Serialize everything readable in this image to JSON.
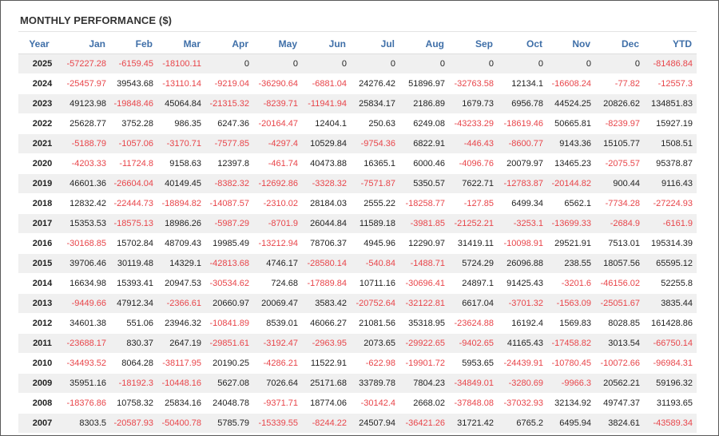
{
  "panel": {
    "title": "MONTHLY PERFORMANCE ($)"
  },
  "colors": {
    "header_text": "#3f6fa8",
    "negative_text": "#e8454a",
    "stripe_row": "#f0f0f0"
  },
  "table": {
    "headers": [
      "Year",
      "Jan",
      "Feb",
      "Mar",
      "Apr",
      "May",
      "Jun",
      "Jul",
      "Aug",
      "Sep",
      "Oct",
      "Nov",
      "Dec",
      "YTD"
    ],
    "rows": [
      [
        "2025",
        "-57227.28",
        "-6159.45",
        "-18100.11",
        "0",
        "0",
        "0",
        "0",
        "0",
        "0",
        "0",
        "0",
        "0",
        "-81486.84"
      ],
      [
        "2024",
        "-25457.97",
        "39543.68",
        "-13110.14",
        "-9219.04",
        "-36290.64",
        "-6881.04",
        "24276.42",
        "51896.97",
        "-32763.58",
        "12134.1",
        "-16608.24",
        "-77.82",
        "-12557.3"
      ],
      [
        "2023",
        "49123.98",
        "-19848.46",
        "45064.84",
        "-21315.32",
        "-8239.71",
        "-11941.94",
        "25834.17",
        "2186.89",
        "1679.73",
        "6956.78",
        "44524.25",
        "20826.62",
        "134851.83"
      ],
      [
        "2022",
        "25628.77",
        "3752.28",
        "986.35",
        "6247.36",
        "-20164.47",
        "12404.1",
        "250.63",
        "6249.08",
        "-43233.29",
        "-18619.46",
        "50665.81",
        "-8239.97",
        "15927.19"
      ],
      [
        "2021",
        "-5188.79",
        "-1057.06",
        "-3170.71",
        "-7577.85",
        "-4297.4",
        "10529.84",
        "-9754.36",
        "6822.91",
        "-446.43",
        "-8600.77",
        "9143.36",
        "15105.77",
        "1508.51"
      ],
      [
        "2020",
        "-4203.33",
        "-11724.8",
        "9158.63",
        "12397.8",
        "-461.74",
        "40473.88",
        "16365.1",
        "6000.46",
        "-4096.76",
        "20079.97",
        "13465.23",
        "-2075.57",
        "95378.87"
      ],
      [
        "2019",
        "46601.36",
        "-26604.04",
        "40149.45",
        "-8382.32",
        "-12692.86",
        "-3328.32",
        "-7571.87",
        "5350.57",
        "7622.71",
        "-12783.87",
        "-20144.82",
        "900.44",
        "9116.43"
      ],
      [
        "2018",
        "12832.42",
        "-22444.73",
        "-18894.82",
        "-14087.57",
        "-2310.02",
        "28184.03",
        "2555.22",
        "-18258.77",
        "-127.85",
        "6499.34",
        "6562.1",
        "-7734.28",
        "-27224.93"
      ],
      [
        "2017",
        "15353.53",
        "-18575.13",
        "18986.26",
        "-5987.29",
        "-8701.9",
        "26044.84",
        "11589.18",
        "-3981.85",
        "-21252.21",
        "-3253.1",
        "-13699.33",
        "-2684.9",
        "-6161.9"
      ],
      [
        "2016",
        "-30168.85",
        "15702.84",
        "48709.43",
        "19985.49",
        "-13212.94",
        "78706.37",
        "4945.96",
        "12290.97",
        "31419.11",
        "-10098.91",
        "29521.91",
        "7513.01",
        "195314.39"
      ],
      [
        "2015",
        "39706.46",
        "30119.48",
        "14329.1",
        "-42813.68",
        "4746.17",
        "-28580.14",
        "-540.84",
        "-1488.71",
        "5724.29",
        "26096.88",
        "238.55",
        "18057.56",
        "65595.12"
      ],
      [
        "2014",
        "16634.98",
        "15393.41",
        "20947.53",
        "-30534.62",
        "724.68",
        "-17889.84",
        "10711.16",
        "-30696.41",
        "24897.1",
        "91425.43",
        "-3201.6",
        "-46156.02",
        "52255.8"
      ],
      [
        "2013",
        "-9449.66",
        "47912.34",
        "-2366.61",
        "20660.97",
        "20069.47",
        "3583.42",
        "-20752.64",
        "-32122.81",
        "6617.04",
        "-3701.32",
        "-1563.09",
        "-25051.67",
        "3835.44"
      ],
      [
        "2012",
        "34601.38",
        "551.06",
        "23946.32",
        "-10841.89",
        "8539.01",
        "46066.27",
        "21081.56",
        "35318.95",
        "-23624.88",
        "16192.4",
        "1569.83",
        "8028.85",
        "161428.86"
      ],
      [
        "2011",
        "-23688.17",
        "830.37",
        "2647.19",
        "-29851.61",
        "-3192.47",
        "-2963.95",
        "2073.65",
        "-29922.65",
        "-9402.65",
        "41165.43",
        "-17458.82",
        "3013.54",
        "-66750.14"
      ],
      [
        "2010",
        "-34493.52",
        "8064.28",
        "-38117.95",
        "20190.25",
        "-4286.21",
        "11522.91",
        "-622.98",
        "-19901.72",
        "5953.65",
        "-24439.91",
        "-10780.45",
        "-10072.66",
        "-96984.31"
      ],
      [
        "2009",
        "35951.16",
        "-18192.3",
        "-10448.16",
        "5627.08",
        "7026.64",
        "25171.68",
        "33789.78",
        "7804.23",
        "-34849.01",
        "-3280.69",
        "-9966.3",
        "20562.21",
        "59196.32"
      ],
      [
        "2008",
        "-18376.86",
        "10758.32",
        "25834.16",
        "24048.78",
        "-9371.71",
        "18774.06",
        "-30142.4",
        "2668.02",
        "-37848.08",
        "-37032.93",
        "32134.92",
        "49747.37",
        "31193.65"
      ],
      [
        "2007",
        "8303.5",
        "-20587.93",
        "-50400.78",
        "5785.79",
        "-15339.55",
        "-8244.22",
        "24507.94",
        "-36421.26",
        "31721.42",
        "6765.2",
        "6495.94",
        "3824.61",
        "-43589.34"
      ]
    ]
  }
}
